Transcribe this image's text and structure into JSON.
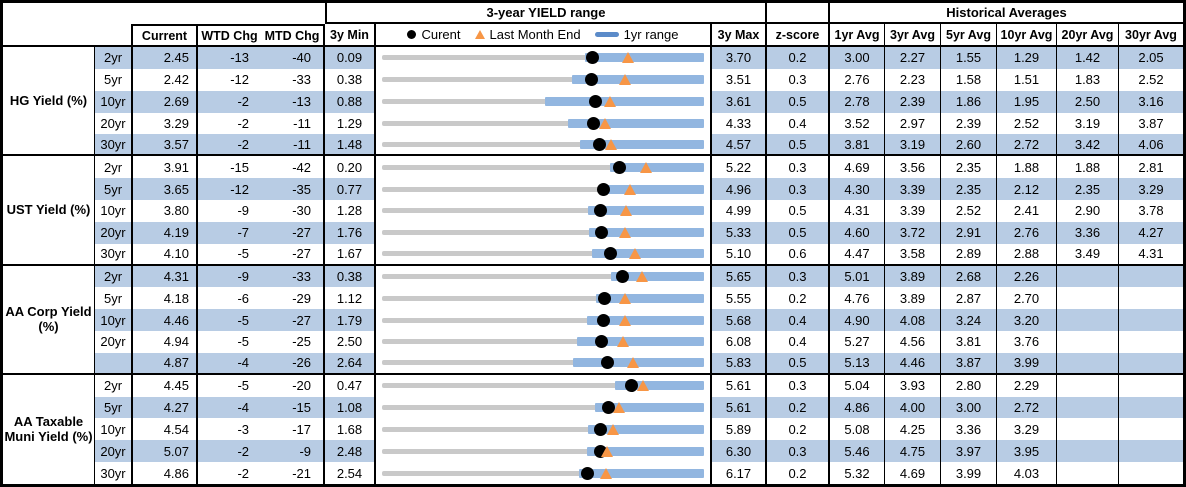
{
  "chart_data": {
    "type": "table",
    "title": "3-year YIELD range",
    "hist_title": "Historical Averages",
    "columns": {
      "current": "Current",
      "wtd": "WTD Chg",
      "mtd": "MTD Chg",
      "min": "3y Min",
      "max": "3y Max",
      "z": "z-score",
      "avgs": [
        "1yr Avg",
        "3yr Avg",
        "5yr Avg",
        "10yr Avg",
        "20yr Avg",
        "30yr Avg"
      ]
    },
    "legend": {
      "current": "Curent",
      "month_end": "Last Month End",
      "range": "1yr range"
    },
    "colors": {
      "stripe": "#B8CCE4",
      "bar_1yr": "#92B6E0",
      "track_3yr": "#C9C9C9",
      "dot": "#000000",
      "triangle": "#F79646",
      "legend_dash": "#5B8BC9"
    },
    "sections": [
      {
        "label": "HG Yield (%)",
        "rows": [
          {
            "tenor": "2yr",
            "current": "2.45",
            "wtd": "-13",
            "mtd": "-40",
            "min": "0.09",
            "max": "3.70",
            "z": "0.2",
            "avgs": [
              "3.00",
              "2.27",
              "1.55",
              "1.29",
              "1.42",
              "2.05"
            ],
            "low_1yr": 2.37,
            "month_end": 2.85
          },
          {
            "tenor": "5yr",
            "current": "2.42",
            "wtd": "-12",
            "mtd": "-33",
            "min": "0.38",
            "max": "3.51",
            "z": "0.3",
            "avgs": [
              "2.76",
              "2.23",
              "1.58",
              "1.51",
              "1.83",
              "2.52"
            ],
            "low_1yr": 2.23,
            "month_end": 2.75
          },
          {
            "tenor": "10yr",
            "current": "2.69",
            "wtd": "-2",
            "mtd": "-13",
            "min": "0.88",
            "max": "3.61",
            "z": "0.5",
            "avgs": [
              "2.78",
              "2.39",
              "1.86",
              "1.95",
              "2.50",
              "3.16"
            ],
            "low_1yr": 2.26,
            "month_end": 2.82
          },
          {
            "tenor": "20yr",
            "current": "3.29",
            "wtd": "-2",
            "mtd": "-11",
            "min": "1.29",
            "max": "4.33",
            "z": "0.4",
            "avgs": [
              "3.52",
              "2.97",
              "2.39",
              "2.52",
              "3.19",
              "3.87"
            ],
            "low_1yr": 3.05,
            "month_end": 3.4
          },
          {
            "tenor": "30yr",
            "current": "3.57",
            "wtd": "-2",
            "mtd": "-11",
            "min": "1.48",
            "max": "4.57",
            "z": "0.5",
            "avgs": [
              "3.81",
              "3.19",
              "2.60",
              "2.72",
              "3.42",
              "4.06"
            ],
            "low_1yr": 3.38,
            "month_end": 3.68
          }
        ]
      },
      {
        "label": "UST Yield (%)",
        "rows": [
          {
            "tenor": "2yr",
            "current": "3.91",
            "wtd": "-15",
            "mtd": "-42",
            "min": "0.20",
            "max": "5.22",
            "z": "0.3",
            "avgs": [
              "4.69",
              "3.56",
              "2.35",
              "1.88",
              "1.88",
              "2.81"
            ],
            "low_1yr": 3.76,
            "month_end": 4.33
          },
          {
            "tenor": "5yr",
            "current": "3.65",
            "wtd": "-12",
            "mtd": "-35",
            "min": "0.77",
            "max": "4.96",
            "z": "0.3",
            "avgs": [
              "4.30",
              "3.39",
              "2.35",
              "2.12",
              "2.35",
              "3.29"
            ],
            "low_1yr": 3.62,
            "month_end": 4.0
          },
          {
            "tenor": "10yr",
            "current": "3.80",
            "wtd": "-9",
            "mtd": "-30",
            "min": "1.28",
            "max": "4.99",
            "z": "0.5",
            "avgs": [
              "4.31",
              "3.39",
              "2.52",
              "2.41",
              "2.90",
              "3.78"
            ],
            "low_1yr": 3.65,
            "month_end": 4.1
          },
          {
            "tenor": "20yr",
            "current": "4.19",
            "wtd": "-7",
            "mtd": "-27",
            "min": "1.76",
            "max": "5.33",
            "z": "0.5",
            "avgs": [
              "4.60",
              "3.72",
              "2.91",
              "2.76",
              "3.36",
              "4.27"
            ],
            "low_1yr": 4.06,
            "month_end": 4.46
          },
          {
            "tenor": "30yr",
            "current": "4.10",
            "wtd": "-5",
            "mtd": "-27",
            "min": "1.67",
            "max": "5.10",
            "z": "0.6",
            "avgs": [
              "4.47",
              "3.58",
              "2.89",
              "2.88",
              "3.49",
              "4.31"
            ],
            "low_1yr": 3.91,
            "month_end": 4.37
          }
        ]
      },
      {
        "label": "AA Corp Yield (%)",
        "rows": [
          {
            "tenor": "2yr",
            "current": "4.31",
            "wtd": "-9",
            "mtd": "-33",
            "min": "0.38",
            "max": "5.65",
            "z": "0.3",
            "avgs": [
              "5.01",
              "3.89",
              "2.68",
              "2.26",
              "",
              ""
            ],
            "low_1yr": 4.13,
            "month_end": 4.64
          },
          {
            "tenor": "5yr",
            "current": "4.18",
            "wtd": "-6",
            "mtd": "-29",
            "min": "1.12",
            "max": "5.55",
            "z": "0.2",
            "avgs": [
              "4.76",
              "3.89",
              "2.87",
              "2.70",
              "",
              ""
            ],
            "low_1yr": 4.07,
            "month_end": 4.47
          },
          {
            "tenor": "10yr",
            "current": "4.46",
            "wtd": "-5",
            "mtd": "-27",
            "min": "1.79",
            "max": "5.68",
            "z": "0.4",
            "avgs": [
              "4.90",
              "4.08",
              "3.24",
              "3.20",
              "",
              ""
            ],
            "low_1yr": 4.27,
            "month_end": 4.73
          },
          {
            "tenor": "20yr",
            "current": "4.94",
            "wtd": "-5",
            "mtd": "-25",
            "min": "2.50",
            "max": "6.08",
            "z": "0.4",
            "avgs": [
              "5.27",
              "4.56",
              "3.81",
              "3.76",
              "",
              ""
            ],
            "low_1yr": 4.67,
            "month_end": 5.19
          },
          {
            "tenor": "",
            "current": "4.87",
            "wtd": "-4",
            "mtd": "-26",
            "min": "2.64",
            "max": "5.83",
            "z": "0.5",
            "avgs": [
              "5.13",
              "4.46",
              "3.87",
              "3.99",
              "",
              ""
            ],
            "low_1yr": 4.53,
            "month_end": 5.13
          }
        ]
      },
      {
        "label": "AA Taxable Muni Yield (%)",
        "rows": [
          {
            "tenor": "2yr",
            "current": "4.45",
            "wtd": "-5",
            "mtd": "-20",
            "min": "0.47",
            "max": "5.61",
            "z": "0.3",
            "avgs": [
              "5.04",
              "3.93",
              "2.80",
              "2.29",
              "",
              ""
            ],
            "low_1yr": 4.19,
            "month_end": 4.65
          },
          {
            "tenor": "5yr",
            "current": "4.27",
            "wtd": "-4",
            "mtd": "-15",
            "min": "1.08",
            "max": "5.61",
            "z": "0.2",
            "avgs": [
              "4.86",
              "4.00",
              "3.00",
              "2.72",
              "",
              ""
            ],
            "low_1yr": 4.08,
            "month_end": 4.42
          },
          {
            "tenor": "10yr",
            "current": "4.54",
            "wtd": "-3",
            "mtd": "-17",
            "min": "1.68",
            "max": "5.89",
            "z": "0.2",
            "avgs": [
              "5.08",
              "4.25",
              "3.36",
              "3.29",
              "",
              ""
            ],
            "low_1yr": 4.37,
            "month_end": 4.71
          },
          {
            "tenor": "20yr",
            "current": "5.07",
            "wtd": "-2",
            "mtd": "-9",
            "min": "2.48",
            "max": "6.30",
            "z": "0.3",
            "avgs": [
              "5.46",
              "4.75",
              "3.97",
              "3.95",
              "",
              ""
            ],
            "low_1yr": 4.91,
            "month_end": 5.16
          },
          {
            "tenor": "30yr",
            "current": "4.86",
            "wtd": "-2",
            "mtd": "-21",
            "min": "2.54",
            "max": "6.17",
            "z": "0.2",
            "avgs": [
              "5.32",
              "4.69",
              "3.99",
              "4.03",
              "",
              ""
            ],
            "low_1yr": 4.76,
            "month_end": 5.07
          }
        ]
      }
    ]
  }
}
